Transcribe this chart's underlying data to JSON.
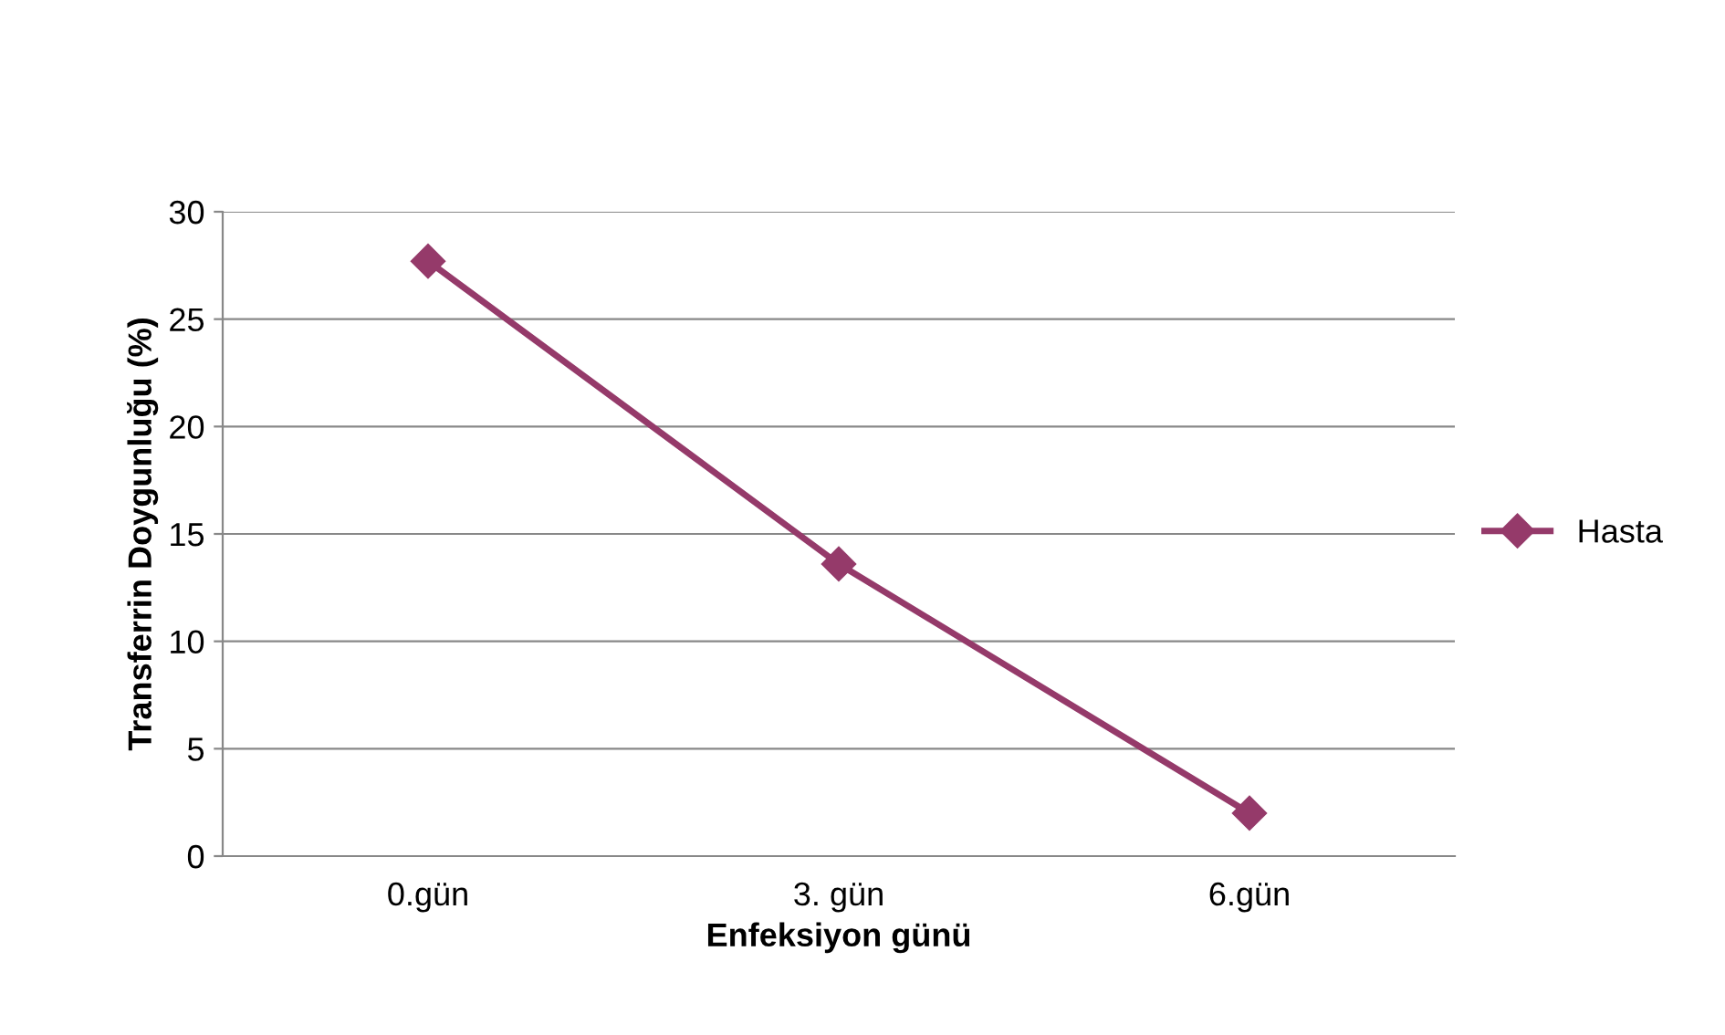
{
  "chart_data": {
    "type": "line",
    "xlabel": "Enfeksiyon günü",
    "ylabel": "Transferrin Doygunluğu (%)",
    "categories": [
      "0.gün",
      "3. gün",
      "6.gün"
    ],
    "series": [
      {
        "name": "Hasta",
        "color": "#953a6a",
        "values": [
          27.7,
          13.6,
          2.0
        ]
      }
    ],
    "ylim": [
      0,
      30
    ],
    "yticks": [
      0,
      5,
      10,
      15,
      20,
      25,
      30
    ],
    "grid": "y",
    "legend": "right",
    "marker": "diamond",
    "line_style": "solid"
  }
}
